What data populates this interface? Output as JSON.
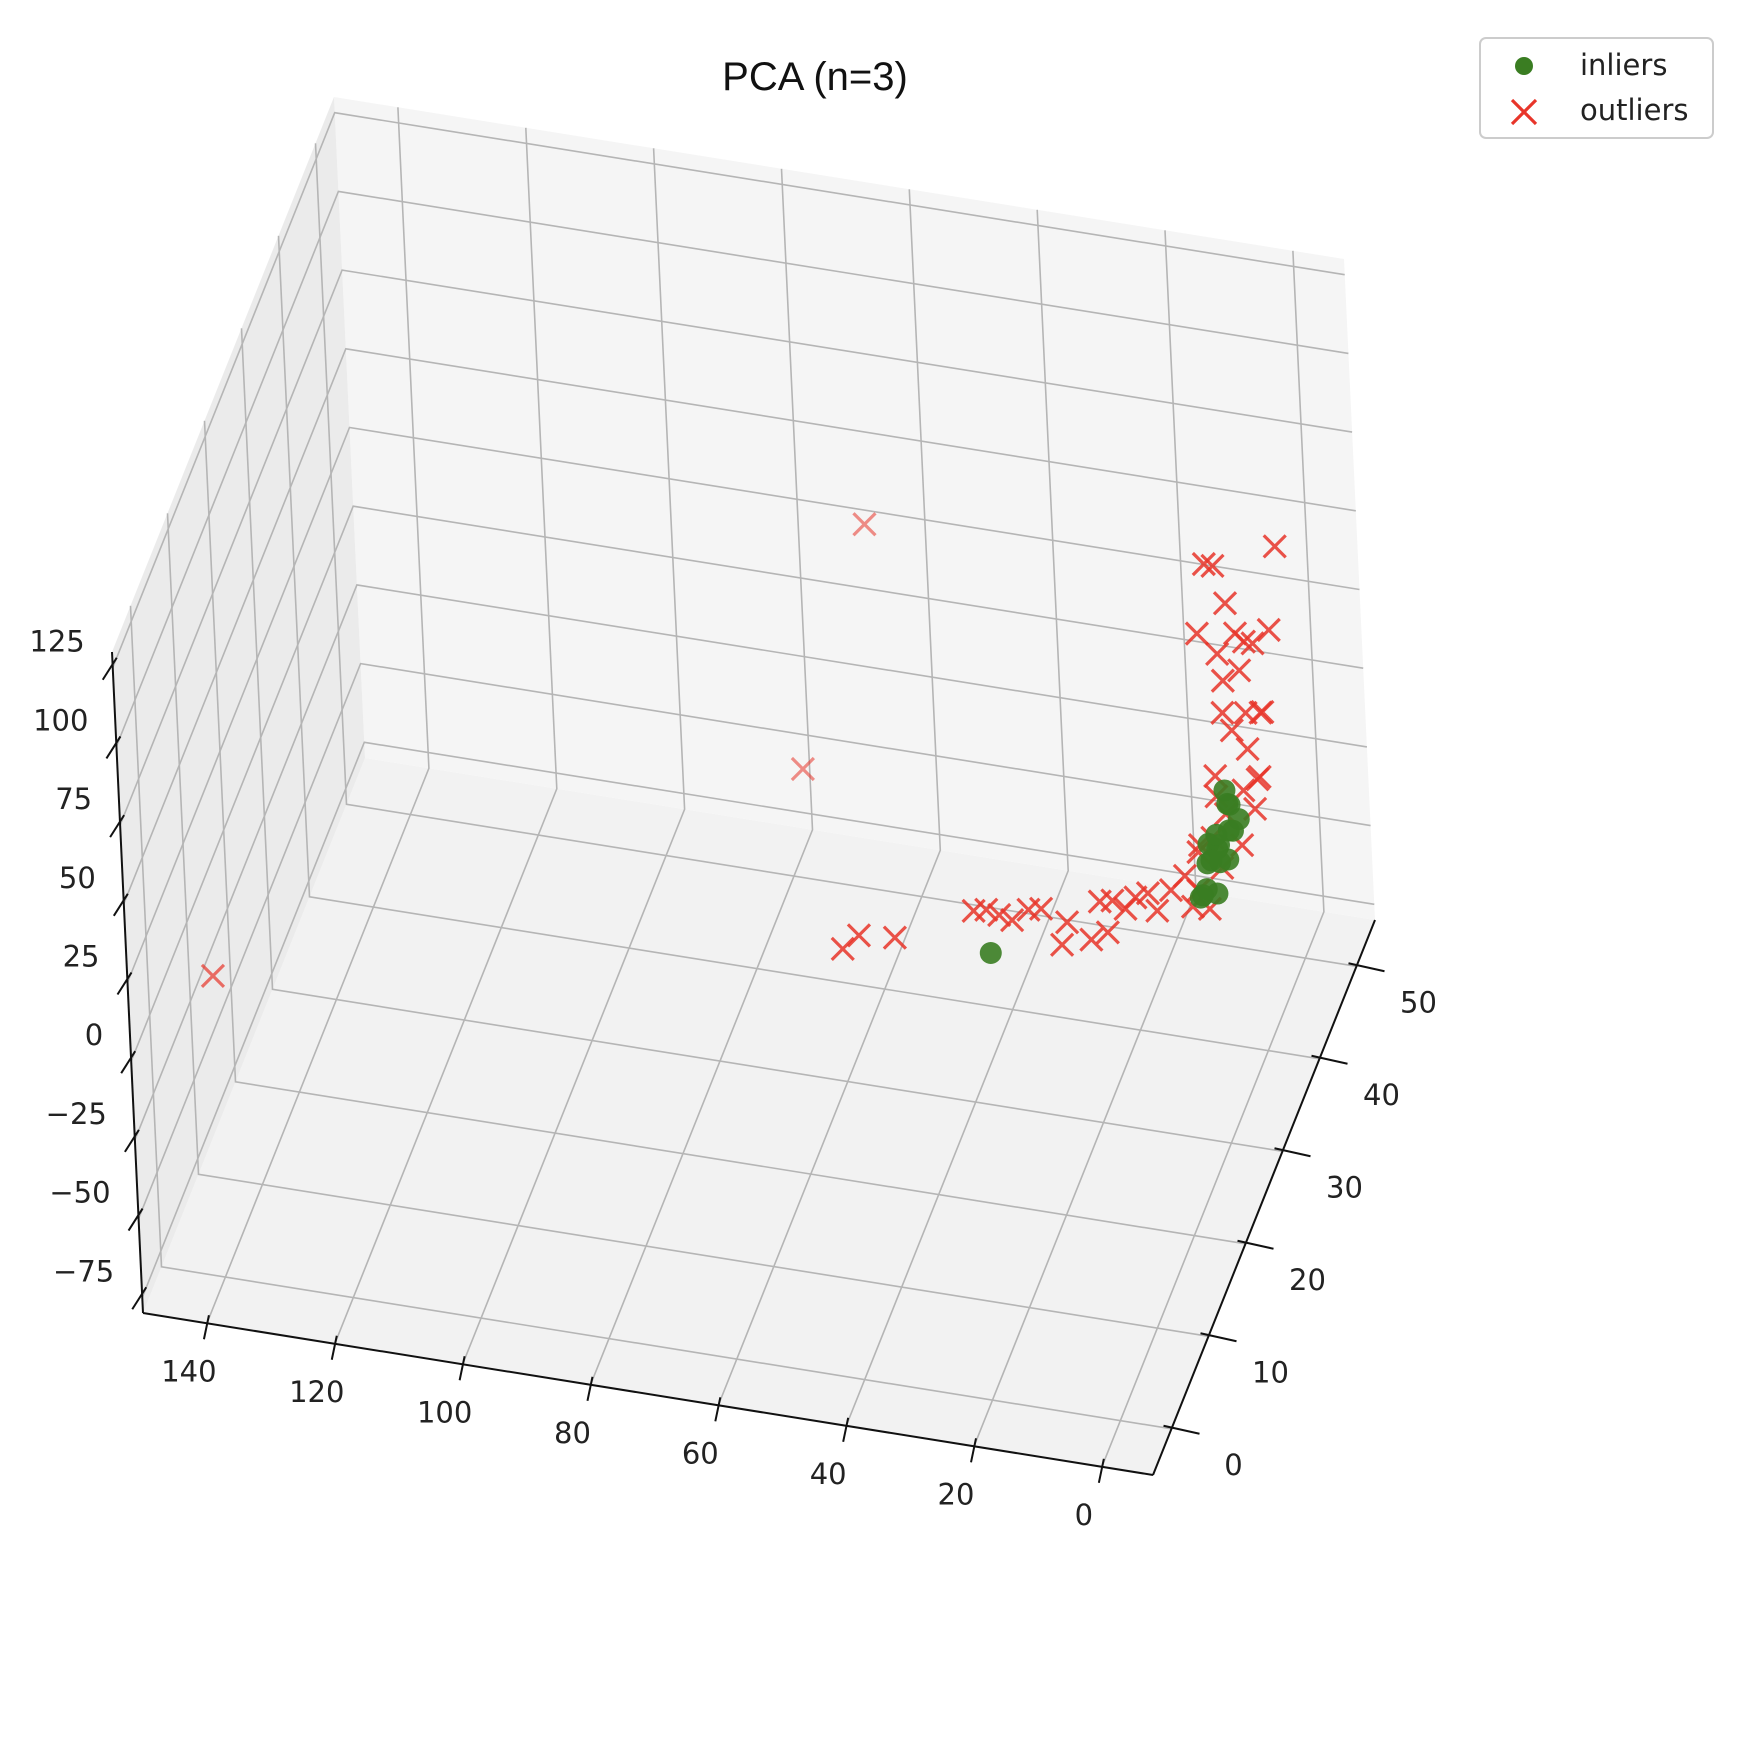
{
  "chart_data": {
    "type": "scatter",
    "title": "PCA (n=3)",
    "projection": "3d",
    "grid": true,
    "legend": "upper-right",
    "x_ticks": [
      "0",
      "20",
      "40",
      "60",
      "80",
      "100",
      "120",
      "140"
    ],
    "y_ticks": [
      "0",
      "10",
      "20",
      "30",
      "40",
      "50"
    ],
    "z_ticks": [
      "−75",
      "−50",
      "−25",
      "0",
      "25",
      "50",
      "75",
      "100",
      "125"
    ],
    "xlim": [
      -8,
      150
    ],
    "ylim": [
      -5,
      55
    ],
    "zlim": [
      -80,
      130
    ],
    "series": [
      {
        "name": "inliers",
        "marker": "circle",
        "color": "#3a7d22",
        "points": [
          {
            "x": 2,
            "y": 30,
            "z": 0
          },
          {
            "x": 3,
            "y": 32,
            "z": 2
          },
          {
            "x": 1,
            "y": 34,
            "z": -2
          },
          {
            "x": 2,
            "y": 36,
            "z": 1
          },
          {
            "x": 3,
            "y": 38,
            "z": 3
          },
          {
            "x": 1,
            "y": 31,
            "z": -4
          },
          {
            "x": 2,
            "y": 33,
            "z": 4
          },
          {
            "x": 3,
            "y": 35,
            "z": -1
          },
          {
            "x": 1,
            "y": 37,
            "z": 2
          },
          {
            "x": 4,
            "y": 39,
            "z": 0
          },
          {
            "x": 2,
            "y": 29,
            "z": 1
          },
          {
            "x": 3,
            "y": 30,
            "z": -3
          },
          {
            "x": 4,
            "y": 34,
            "z": 2
          },
          {
            "x": 2,
            "y": 37,
            "z": -2
          },
          {
            "x": 5,
            "y": 40,
            "z": 1
          },
          {
            "x": 1,
            "y": 32,
            "z": 3
          },
          {
            "x": 4,
            "y": 36,
            "z": -1
          },
          {
            "x": 3,
            "y": 33,
            "z": 0
          },
          {
            "x": 30,
            "y": 20,
            "z": 0
          }
        ]
      },
      {
        "name": "outliers",
        "marker": "x",
        "color": "#e8352a",
        "points": [
          {
            "x": 143,
            "y": 5,
            "z": 0
          },
          {
            "x": 52,
            "y": 18,
            "z": 0
          },
          {
            "x": 50,
            "y": 19,
            "z": 2
          },
          {
            "x": 45,
            "y": 20,
            "z": 0
          },
          {
            "x": 35,
            "y": 24,
            "z": 0
          },
          {
            "x": 33,
            "y": 24,
            "z": 1
          },
          {
            "x": 31,
            "y": 24,
            "z": 0
          },
          {
            "x": 29,
            "y": 24,
            "z": -1
          },
          {
            "x": 27,
            "y": 25,
            "z": 0
          },
          {
            "x": 25,
            "y": 25,
            "z": 1
          },
          {
            "x": 21,
            "y": 25,
            "z": -2
          },
          {
            "x": 20,
            "y": 22,
            "z": 0
          },
          {
            "x": 17,
            "y": 27,
            "z": 0
          },
          {
            "x": 15,
            "y": 27,
            "z": 1
          },
          {
            "x": 13,
            "y": 27,
            "z": -1
          },
          {
            "x": 12,
            "y": 28,
            "z": 0
          },
          {
            "x": 10,
            "y": 28,
            "z": 2
          },
          {
            "x": 16,
            "y": 23,
            "z": 0
          },
          {
            "x": 14,
            "y": 24,
            "z": 0
          },
          {
            "x": 8,
            "y": 27,
            "z": 0
          },
          {
            "x": 7,
            "y": 29,
            "z": 1
          },
          {
            "x": 6,
            "y": 31,
            "z": 0
          },
          {
            "x": 5,
            "y": 33,
            "z": 2
          },
          {
            "x": 4,
            "y": 35,
            "z": 1
          },
          {
            "x": 3,
            "y": 37,
            "z": 3
          },
          {
            "x": 2,
            "y": 40,
            "z": 2
          },
          {
            "x": 1,
            "y": 42,
            "z": 0
          },
          {
            "x": 0,
            "y": 41,
            "z": 4
          },
          {
            "x": -1,
            "y": 38,
            "z": 3
          },
          {
            "x": 0,
            "y": 36,
            "z": -3
          },
          {
            "x": 6,
            "y": 35,
            "z": -2
          },
          {
            "x": 5,
            "y": 38,
            "z": 5
          },
          {
            "x": 7,
            "y": 41,
            "z": 2
          },
          {
            "x": 3,
            "y": 43,
            "z": 6
          },
          {
            "x": 6,
            "y": 44,
            "z": 8
          },
          {
            "x": 8,
            "y": 45,
            "z": 10
          },
          {
            "x": 5,
            "y": 46,
            "z": 8
          },
          {
            "x": 3,
            "y": 47,
            "z": 6
          },
          {
            "x": 2,
            "y": 45,
            "z": 12
          },
          {
            "x": 9,
            "y": 47,
            "z": 14
          },
          {
            "x": 11,
            "y": 49,
            "z": 16
          },
          {
            "x": 7,
            "y": 48,
            "z": 15
          },
          {
            "x": 6,
            "y": 50,
            "z": 18
          },
          {
            "x": 4,
            "y": 51,
            "z": 20
          },
          {
            "x": 8,
            "y": 51,
            "z": 15
          },
          {
            "x": 10,
            "y": 52,
            "z": 14
          },
          {
            "x": 12,
            "y": 53,
            "z": 20
          },
          {
            "x": 16,
            "y": 52,
            "z": 12
          },
          {
            "x": 15,
            "y": 55,
            "z": 25
          },
          {
            "x": 17,
            "y": 56,
            "z": 22
          },
          {
            "x": 7,
            "y": 58,
            "z": 25
          },
          {
            "x": 2,
            "y": 34,
            "z": -5
          },
          {
            "x": 1,
            "y": 29,
            "z": -3
          },
          {
            "x": 4,
            "y": 31,
            "z": -4
          },
          {
            "x": 3,
            "y": 28,
            "z": 0
          },
          {
            "x": 50,
            "y": 25,
            "z": 115
          },
          {
            "x": 55,
            "y": 15,
            "z": 65
          }
        ]
      }
    ]
  }
}
